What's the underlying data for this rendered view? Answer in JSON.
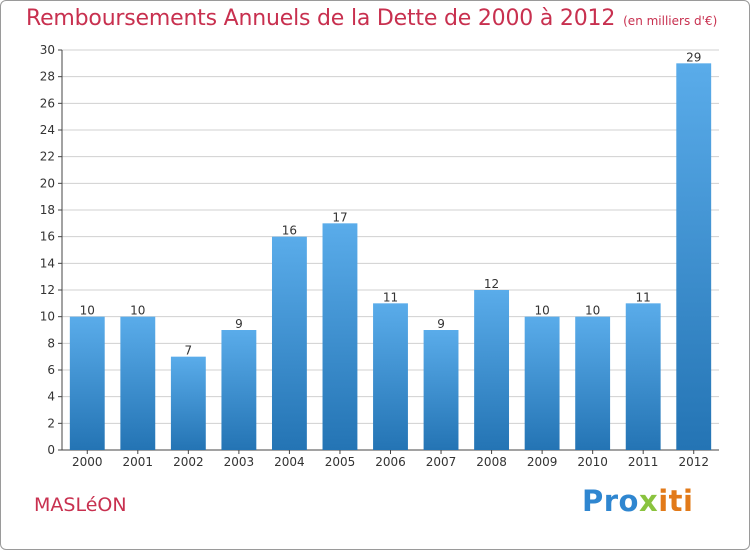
{
  "title": {
    "main": "Remboursements Annuels de la Dette de 2000 à 2012",
    "unit": "(en milliers d'€)"
  },
  "town": "MASLéON",
  "logo": {
    "part1": "Pro",
    "part2": "x",
    "part3": "iti"
  },
  "colors": {
    "title": "#c8304f",
    "bar_top": "#5aacea",
    "bar_bottom": "#2474b4",
    "grid": "#d0d0d0",
    "axis": "#444444",
    "background": "#ffffff"
  },
  "chart_data": {
    "type": "bar",
    "categories": [
      "2000",
      "2001",
      "2002",
      "2003",
      "2004",
      "2005",
      "2006",
      "2007",
      "2008",
      "2009",
      "2010",
      "2011",
      "2012"
    ],
    "values": [
      10,
      10,
      7,
      9,
      16,
      17,
      11,
      9,
      12,
      10,
      10,
      11,
      29
    ],
    "ylim": [
      0,
      30
    ],
    "yticks": [
      0,
      2,
      4,
      6,
      8,
      10,
      12,
      14,
      16,
      18,
      20,
      22,
      24,
      26,
      28,
      30
    ],
    "grid": true,
    "data_labels": true
  }
}
